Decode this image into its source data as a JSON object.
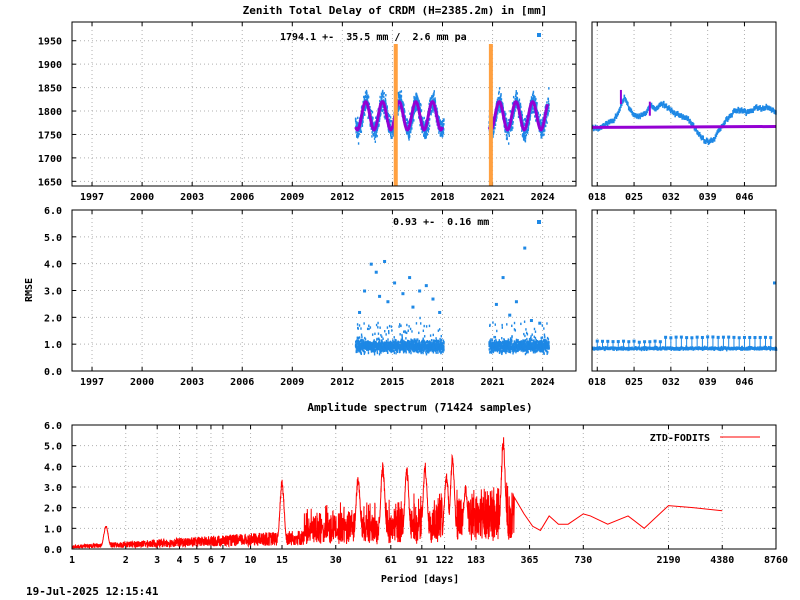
{
  "timestamp": "19-Jul-2025 12:15:41",
  "colors": {
    "ztd": "#1e88e5",
    "model": "#9400d3",
    "event": "#ffa040",
    "spectrum": "#ff0000",
    "grid": "#b0b0b0"
  },
  "chart_data": [
    {
      "id": "ztd-series",
      "type": "scatter",
      "title": "Zenith Total Delay of CRDM (H=2385.2m) in [mm]",
      "annotation": "1794.1 +-  35.5 mm /  2.6 mm pa",
      "xlabel": "",
      "ylabel": "",
      "xlim": [
        1995.8,
        2026.0
      ],
      "ylim": [
        1640,
        1990
      ],
      "x_ticks": [
        "1997",
        "2000",
        "2003",
        "2006",
        "2009",
        "2012",
        "2015",
        "2018",
        "2021",
        "2024"
      ],
      "x_tick_values": [
        1997,
        2000,
        2003,
        2006,
        2009,
        2012,
        2015,
        2018,
        2021,
        2024
      ],
      "y_ticks": [
        "1650",
        "1700",
        "1750",
        "1800",
        "1850",
        "1900",
        "1950"
      ],
      "y_tick_values": [
        1650,
        1700,
        1750,
        1800,
        1850,
        1900,
        1950
      ],
      "grid": true,
      "events": [
        2015.2,
        2020.9
      ],
      "segments": [
        [
          2012.75,
          2018.05
        ],
        [
          2020.75,
          2024.35
        ]
      ],
      "series": [
        {
          "role": "ztd",
          "mean": 1790,
          "seasonal_amplitude": 30,
          "spread": 35
        },
        {
          "role": "model",
          "mean": 1790,
          "seasonal_amplitude": 30
        }
      ]
    },
    {
      "id": "ztd-recent",
      "type": "scatter",
      "x_ticks": [
        "018",
        "025",
        "032",
        "039",
        "046"
      ],
      "x_tick_values": [
        18,
        25,
        32,
        39,
        46
      ],
      "xlim": [
        17,
        52
      ],
      "ylim": [
        1640,
        1990
      ],
      "grid": true,
      "series": [
        {
          "role": "ztd",
          "points": [
            [
              17,
              1765
            ],
            [
              18,
              1762
            ],
            [
              19,
              1770
            ],
            [
              20,
              1775
            ],
            [
              21,
              1780
            ],
            [
              22,
              1800
            ],
            [
              23,
              1830
            ],
            [
              24,
              1805
            ],
            [
              25,
              1790
            ],
            [
              26,
              1790
            ],
            [
              27,
              1795
            ],
            [
              28,
              1812
            ],
            [
              29,
              1805
            ],
            [
              30,
              1815
            ],
            [
              31,
              1810
            ],
            [
              32,
              1800
            ],
            [
              33,
              1795
            ],
            [
              34,
              1790
            ],
            [
              35,
              1785
            ],
            [
              36,
              1770
            ],
            [
              37,
              1755
            ],
            [
              38,
              1740
            ],
            [
              39,
              1735
            ],
            [
              40,
              1740
            ],
            [
              41,
              1760
            ],
            [
              42,
              1775
            ],
            [
              43,
              1790
            ],
            [
              44,
              1800
            ],
            [
              45,
              1803
            ],
            [
              46,
              1798
            ],
            [
              47,
              1800
            ],
            [
              48,
              1808
            ],
            [
              49,
              1805
            ],
            [
              50,
              1810
            ],
            [
              51,
              1803
            ],
            [
              52,
              1798
            ]
          ]
        },
        {
          "role": "model",
          "points": [
            [
              17,
              1765
            ],
            [
              52,
              1767
            ]
          ]
        }
      ]
    },
    {
      "id": "rmse-series",
      "type": "scatter",
      "annotation": "0.93 +-  0.16 mm",
      "ylabel": "RMSE",
      "xlim": [
        1995.8,
        2026.0
      ],
      "ylim": [
        0,
        6
      ],
      "x_ticks": [
        "1997",
        "2000",
        "2003",
        "2006",
        "2009",
        "2012",
        "2015",
        "2018",
        "2021",
        "2024"
      ],
      "x_tick_values": [
        1997,
        2000,
        2003,
        2006,
        2009,
        2012,
        2015,
        2018,
        2021,
        2024
      ],
      "y_ticks": [
        "0.0",
        "1.0",
        "2.0",
        "3.0",
        "4.0",
        "5.0",
        "6.0"
      ],
      "y_tick_values": [
        0,
        1,
        2,
        3,
        4,
        5,
        6
      ],
      "grid": true,
      "segments": [
        [
          2012.75,
          2018.05
        ],
        [
          2020.75,
          2024.35
        ]
      ],
      "series": [
        {
          "role": "rmse",
          "mean": 0.93,
          "spread": 0.16,
          "outliers": [
            [
              2013.0,
              2.2
            ],
            [
              2013.3,
              3.0
            ],
            [
              2013.7,
              4.0
            ],
            [
              2014.0,
              3.7
            ],
            [
              2014.2,
              2.8
            ],
            [
              2014.5,
              4.1
            ],
            [
              2014.7,
              2.6
            ],
            [
              2015.1,
              3.3
            ],
            [
              2015.6,
              2.9
            ],
            [
              2016.0,
              3.5
            ],
            [
              2016.2,
              2.4
            ],
            [
              2016.6,
              3.0
            ],
            [
              2017.0,
              3.2
            ],
            [
              2017.4,
              2.7
            ],
            [
              2017.8,
              2.2
            ],
            [
              2021.2,
              2.5
            ],
            [
              2021.6,
              3.5
            ],
            [
              2022.0,
              2.1
            ],
            [
              2022.4,
              2.6
            ],
            [
              2022.9,
              4.6
            ],
            [
              2023.3,
              1.9
            ],
            [
              2023.8,
              1.8
            ]
          ]
        }
      ]
    },
    {
      "id": "rmse-recent",
      "type": "scatter",
      "x_ticks": [
        "018",
        "025",
        "032",
        "039",
        "046"
      ],
      "x_tick_values": [
        18,
        25,
        32,
        39,
        46
      ],
      "xlim": [
        17,
        52
      ],
      "ylim": [
        0,
        6
      ],
      "grid": true,
      "series": [
        {
          "role": "rmse",
          "base": 0.85,
          "whisker": 1.1,
          "end_outlier": [
            52,
            3.3
          ]
        }
      ]
    },
    {
      "id": "amplitude-spectrum",
      "type": "line",
      "title": "Amplitude spectrum (71424 samples)",
      "xlabel": "Period [days]",
      "xscale": "log",
      "xlim": [
        1,
        8760
      ],
      "ylim": [
        0,
        6
      ],
      "x_ticks": [
        "1",
        "2",
        "3",
        "4",
        "5",
        "6",
        "7",
        "10",
        "15",
        "30",
        "61",
        "91",
        "122",
        "183",
        "365",
        "730",
        "2190",
        "4380",
        "8760"
      ],
      "x_tick_values": [
        1,
        2,
        3,
        4,
        5,
        6,
        7,
        10,
        15,
        30,
        61,
        91,
        122,
        183,
        365,
        730,
        2190,
        4380,
        8760
      ],
      "y_ticks": [
        "0.0",
        "1.0",
        "2.0",
        "3.0",
        "4.0",
        "5.0",
        "6.0"
      ],
      "y_tick_values": [
        0,
        1,
        2,
        3,
        4,
        5,
        6
      ],
      "legend": "ZTD-FODITS",
      "legend_position": "top-right",
      "grid": true,
      "peaks": [
        [
          1.55,
          1.2
        ],
        [
          15,
          3.4
        ],
        [
          40,
          3.6
        ],
        [
          55,
          4.2
        ],
        [
          75,
          4.0
        ],
        [
          95,
          4.2
        ],
        [
          125,
          3.8
        ],
        [
          135,
          4.6
        ],
        [
          160,
          3.1
        ],
        [
          260,
          5.5
        ]
      ],
      "tail": [
        [
          300,
          2.5
        ],
        [
          340,
          1.7
        ],
        [
          380,
          1.1
        ],
        [
          420,
          0.9
        ],
        [
          470,
          1.6
        ],
        [
          530,
          1.2
        ],
        [
          600,
          1.2
        ],
        [
          730,
          1.7
        ],
        [
          800,
          1.6
        ],
        [
          1000,
          1.2
        ],
        [
          1300,
          1.6
        ],
        [
          1600,
          1.0
        ],
        [
          2190,
          2.1
        ],
        [
          3000,
          2.0
        ],
        [
          4380,
          1.85
        ]
      ]
    }
  ]
}
